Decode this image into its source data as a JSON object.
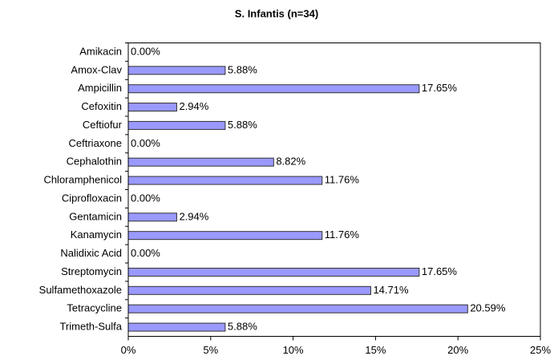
{
  "chart_data": {
    "type": "bar",
    "orientation": "horizontal",
    "title": "S. Infantis (n=34)",
    "categories": [
      "Amikacin",
      "Amox-Clav",
      "Ampicillin",
      "Cefoxitin",
      "Ceftiofur",
      "Ceftriaxone",
      "Cephalothin",
      "Chloramphenicol",
      "Ciprofloxacin",
      "Gentamicin",
      "Kanamycin",
      "Nalidixic Acid",
      "Streptomycin",
      "Sulfamethoxazole",
      "Tetracycline",
      "Trimeth-Sulfa"
    ],
    "values": [
      0,
      5.88,
      17.65,
      2.94,
      5.88,
      0,
      8.82,
      11.76,
      0,
      2.94,
      11.76,
      0,
      17.65,
      14.71,
      20.59,
      5.88
    ],
    "value_labels": [
      "0.00%",
      "5.88%",
      "17.65%",
      "2.94%",
      "5.88%",
      "0.00%",
      "8.82%",
      "11.76%",
      "0.00%",
      "2.94%",
      "11.76%",
      "0.00%",
      "17.65%",
      "14.71%",
      "20.59%",
      "5.88%"
    ],
    "color": "#9999ff",
    "xlim": [
      0,
      25
    ],
    "xticks": [
      {
        "value": 0,
        "label": "0%"
      },
      {
        "value": 5,
        "label": "5%"
      },
      {
        "value": 10,
        "label": "10%"
      },
      {
        "value": 15,
        "label": "15%"
      },
      {
        "value": 20,
        "label": "20%"
      },
      {
        "value": 25,
        "label": "25%"
      }
    ]
  }
}
